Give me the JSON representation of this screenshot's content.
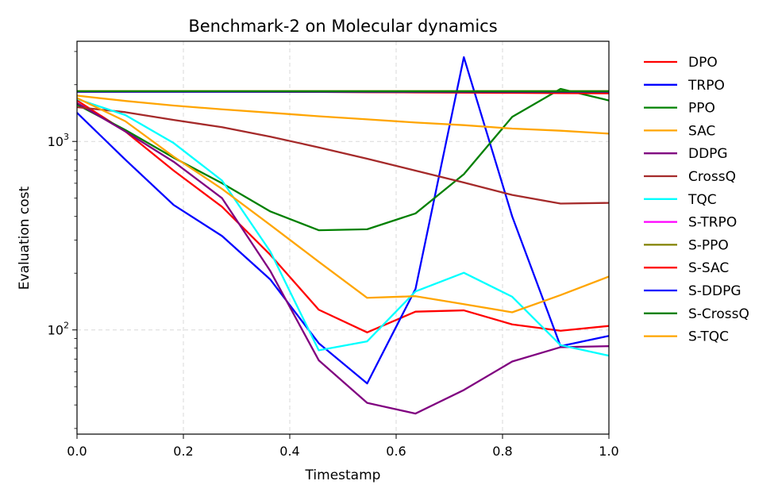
{
  "chart_data": {
    "type": "line",
    "title": "Benchmark-2 on Molecular dynamics",
    "xlabel": "Timestamp",
    "ylabel": "Evaluation cost",
    "xlim": [
      0.0,
      1.0
    ],
    "ylim": [
      28,
      3400
    ],
    "yscale": "log",
    "grid": true,
    "legend_position": "outside-right",
    "x_ticks": [
      "0.0",
      "0.2",
      "0.4",
      "0.6",
      "0.8",
      "1.0"
    ],
    "y_ticks": [
      {
        "base": "10",
        "exp": "2",
        "value": 100
      },
      {
        "base": "10",
        "exp": "3",
        "value": 1000
      }
    ],
    "x": [
      0.0,
      0.0909,
      0.1818,
      0.2727,
      0.3636,
      0.4545,
      0.5455,
      0.6364,
      0.7273,
      0.8182,
      0.9091,
      1.0
    ],
    "series": [
      {
        "name": "DPO",
        "color": "#ff0000",
        "values": [
          1650,
          1130,
          700,
          450,
          250,
          128,
          97,
          125,
          127,
          107,
          99,
          105
        ]
      },
      {
        "name": "TRPO",
        "color": "#0000ff",
        "values": [
          1420,
          800,
          460,
          315,
          185,
          85,
          52,
          165,
          2800,
          400,
          82,
          93
        ]
      },
      {
        "name": "PPO",
        "color": "#008000",
        "values": [
          1570,
          1150,
          820,
          600,
          425,
          338,
          342,
          415,
          670,
          1350,
          1900,
          1650
        ]
      },
      {
        "name": "SAC",
        "color": "#ffa500",
        "values": [
          1750,
          1640,
          1550,
          1480,
          1420,
          1360,
          1310,
          1260,
          1220,
          1170,
          1140,
          1100
        ]
      },
      {
        "name": "DDPG",
        "color": "#800080",
        "values": [
          1600,
          1130,
          780,
          500,
          205,
          69,
          41,
          36,
          48,
          68,
          81,
          82
        ]
      },
      {
        "name": "CrossQ",
        "color": "#a52a2a",
        "values": [
          1520,
          1430,
          1300,
          1190,
          1060,
          930,
          810,
          700,
          605,
          520,
          468,
          472
        ]
      },
      {
        "name": "TQC",
        "color": "#00ffff",
        "values": [
          1680,
          1380,
          980,
          620,
          260,
          78,
          87,
          160,
          201,
          150,
          83,
          73
        ]
      },
      {
        "name": "S-TRPO",
        "color": "#ff00ff",
        "values": [
          1830,
          1830,
          1830,
          1830,
          1830,
          1830,
          1830,
          1830,
          1830,
          1830,
          1830,
          1830
        ]
      },
      {
        "name": "S-PPO",
        "color": "#808000",
        "values": [
          1850,
          1850,
          1850,
          1850,
          1850,
          1850,
          1850,
          1850,
          1850,
          1850,
          1850,
          1850
        ]
      },
      {
        "name": "S-SAC",
        "color": "#ff0000",
        "values": [
          1840,
          1840,
          1840,
          1840,
          1835,
          1830,
          1825,
          1820,
          1815,
          1810,
          1805,
          1800
        ]
      },
      {
        "name": "S-DDPG",
        "color": "#0000ff",
        "values": [
          1835,
          1835,
          1835,
          1835,
          1835,
          1835,
          1835,
          1835,
          1835,
          1835,
          1835,
          1835
        ]
      },
      {
        "name": "S-CrossQ",
        "color": "#008000",
        "values": [
          1845,
          1845,
          1845,
          1845,
          1845,
          1845,
          1845,
          1845,
          1845,
          1845,
          1845,
          1845
        ]
      },
      {
        "name": "S-TQC",
        "color": "#ffa500",
        "values": [
          1700,
          1280,
          830,
          560,
          360,
          230,
          148,
          151,
          137,
          124,
          153,
          192
        ]
      }
    ]
  }
}
